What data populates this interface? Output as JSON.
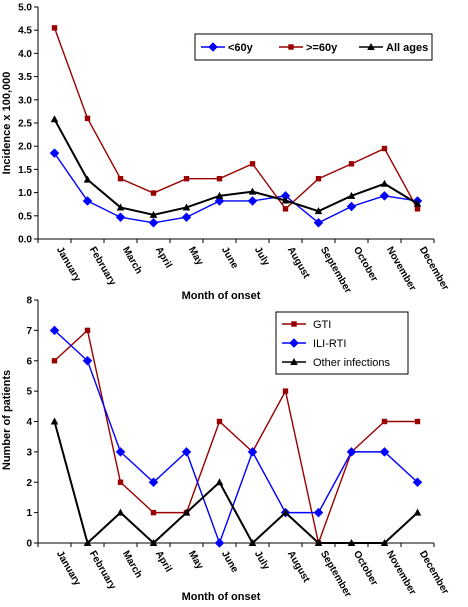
{
  "chart_data": [
    {
      "type": "line",
      "categories": [
        "January",
        "February",
        "March",
        "April",
        "May",
        "June",
        "July",
        "August",
        "September",
        "October",
        "November",
        "December"
      ],
      "xlabel": "Month of onset",
      "ylabel": "Incidence x 100,000",
      "ylim": [
        0,
        5
      ],
      "yticks": [
        "0.0",
        "0.5",
        "1.0",
        "1.5",
        "2.0",
        "2.5",
        "3.0",
        "3.5",
        "4.0",
        "4.5",
        "5.0"
      ],
      "legend_position": "top-right",
      "series": [
        {
          "name": "<60y",
          "color": "#0000ff",
          "marker": "diamond",
          "values": [
            1.85,
            0.82,
            0.47,
            0.35,
            0.47,
            0.82,
            0.82,
            0.93,
            0.35,
            0.7,
            0.93,
            0.82
          ]
        },
        {
          "name": ">=60y",
          "color": "#990000",
          "marker": "square",
          "values": [
            4.55,
            2.6,
            1.3,
            0.99,
            1.3,
            1.3,
            1.62,
            0.65,
            1.3,
            1.62,
            1.95,
            0.65
          ]
        },
        {
          "name": "All ages",
          "color": "#000000",
          "marker": "triangle",
          "values": [
            2.58,
            1.28,
            0.68,
            0.52,
            0.68,
            0.93,
            1.02,
            0.83,
            0.6,
            0.93,
            1.19,
            0.76
          ]
        }
      ]
    },
    {
      "type": "line",
      "categories": [
        "January",
        "February",
        "March",
        "April",
        "May",
        "June",
        "July",
        "August",
        "September",
        "October",
        "November",
        "December"
      ],
      "xlabel": "Month of onset",
      "ylabel": "Number of patients",
      "ylim": [
        0,
        8
      ],
      "yticks": [
        "0",
        "1",
        "2",
        "3",
        "4",
        "5",
        "6",
        "7",
        "8"
      ],
      "legend_position": "top-right",
      "series": [
        {
          "name": "GTI",
          "color": "#990000",
          "marker": "square",
          "values": [
            6,
            7,
            2,
            1,
            1,
            4,
            3,
            5,
            0,
            3,
            4,
            4
          ]
        },
        {
          "name": "ILI-RTI",
          "color": "#0000ff",
          "marker": "diamond",
          "values": [
            7,
            6,
            3,
            2,
            3,
            0,
            3,
            1,
            1,
            3,
            3,
            2
          ]
        },
        {
          "name": "Other infections",
          "color": "#000000",
          "marker": "triangle",
          "values": [
            4,
            0,
            1,
            0,
            1,
            2,
            0,
            1,
            0,
            0,
            0,
            1
          ]
        }
      ]
    }
  ]
}
